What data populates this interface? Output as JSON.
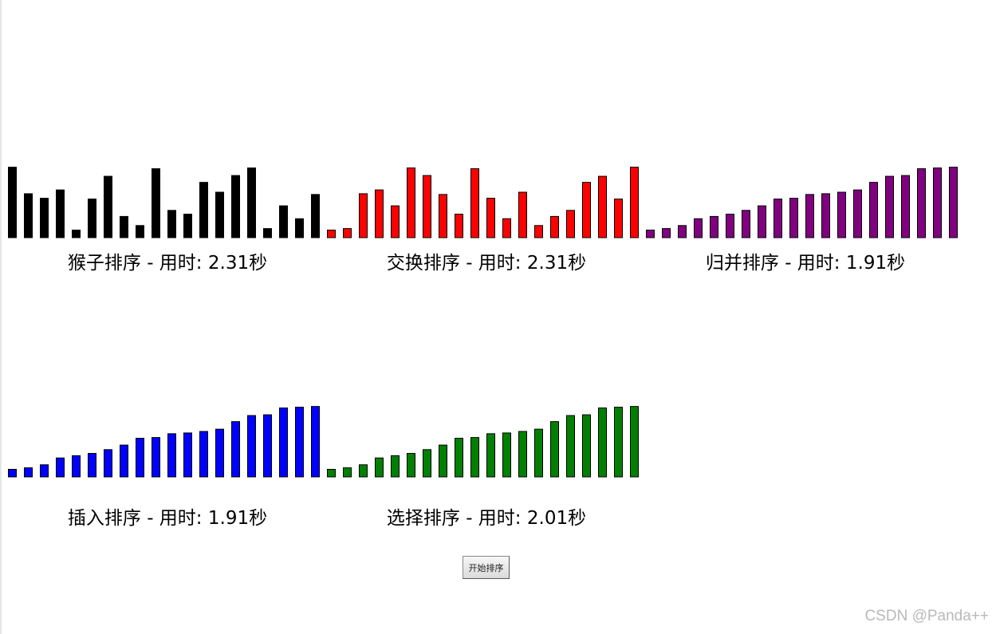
{
  "start_button_label": "开始排序",
  "watermark": "CSDN @Panda++",
  "chart_data": [
    {
      "type": "bar",
      "title": "猴子排序 - 用时: 2.31秒",
      "color": "#000000",
      "values": [
        93,
        58,
        52,
        63,
        10,
        51,
        81,
        28,
        16,
        91,
        36,
        31,
        73,
        60,
        82,
        92,
        12,
        42,
        25,
        57
      ],
      "ylim": [
        0,
        100
      ]
    },
    {
      "type": "bar",
      "title": "交换排序 - 用时: 2.31秒",
      "color": "#ff0000",
      "values": [
        10,
        12,
        58,
        63,
        42,
        92,
        82,
        57,
        31,
        91,
        52,
        25,
        60,
        16,
        28,
        36,
        73,
        81,
        51,
        93
      ],
      "ylim": [
        0,
        100
      ]
    },
    {
      "type": "bar",
      "title": "归并排序 - 用时: 1.91秒",
      "color": "#800080",
      "values": [
        10,
        12,
        16,
        25,
        28,
        31,
        36,
        42,
        51,
        52,
        57,
        58,
        60,
        63,
        73,
        81,
        82,
        91,
        92,
        93
      ],
      "ylim": [
        0,
        100
      ]
    },
    {
      "type": "bar",
      "title": "插入排序 - 用时: 1.91秒",
      "color": "#0000ff",
      "values": [
        10,
        12,
        16,
        25,
        28,
        31,
        36,
        42,
        51,
        52,
        57,
        58,
        60,
        63,
        73,
        81,
        82,
        91,
        92,
        93
      ],
      "ylim": [
        0,
        100
      ]
    },
    {
      "type": "bar",
      "title": "选择排序 - 用时: 2.01秒",
      "color": "#008000",
      "values": [
        10,
        12,
        16,
        25,
        28,
        31,
        36,
        42,
        51,
        52,
        57,
        58,
        60,
        63,
        73,
        81,
        82,
        91,
        92,
        93
      ],
      "ylim": [
        0,
        100
      ]
    }
  ]
}
